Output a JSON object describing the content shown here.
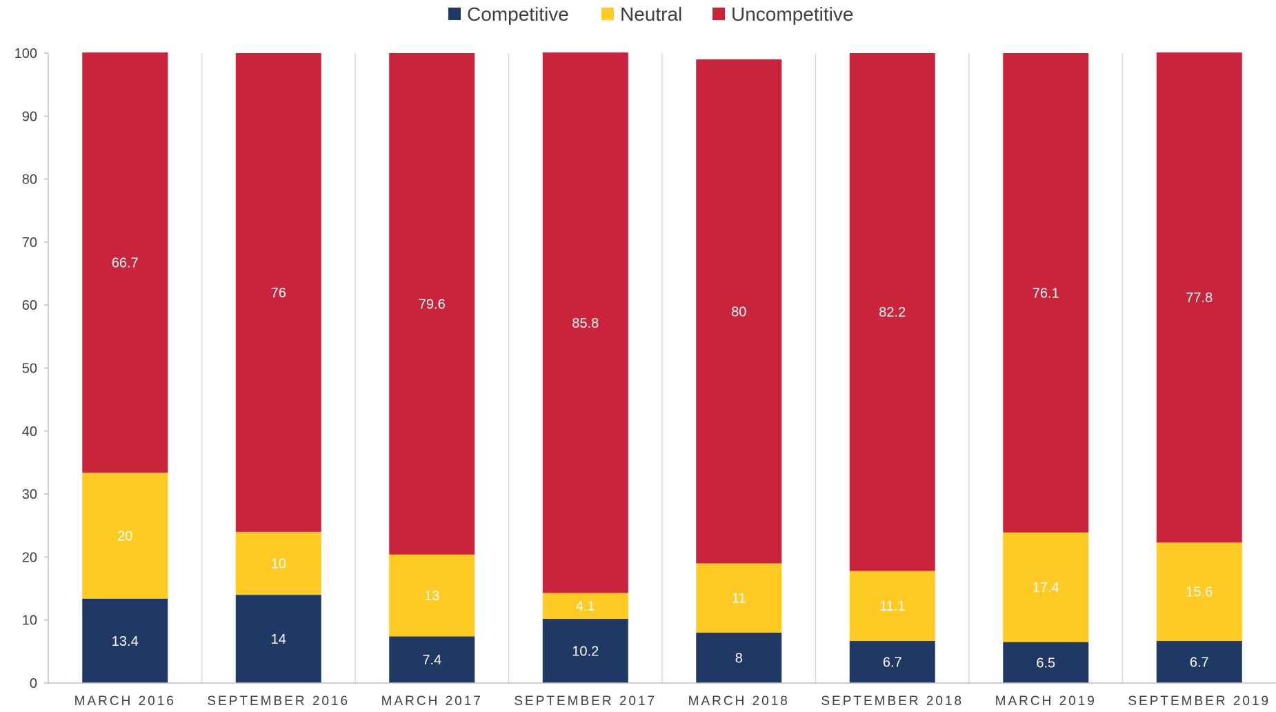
{
  "chart_data": {
    "type": "bar",
    "stacked": true,
    "categories": [
      "MARCH 2016",
      "SEPTEMBER 2016",
      "MARCH 2017",
      "SEPTEMBER 2017",
      "MARCH 2018",
      "SEPTEMBER 2018",
      "MARCH 2019",
      "SEPTEMBER 2019"
    ],
    "series": [
      {
        "name": "Competitive",
        "color": "#203864",
        "values": [
          13.4,
          14,
          7.4,
          10.2,
          8,
          6.7,
          6.5,
          6.7
        ],
        "labels": [
          "13.4",
          "14",
          "7.4",
          "10.2",
          "8",
          "6.7",
          "6.5",
          "6.7"
        ]
      },
      {
        "name": "Neutral",
        "color": "#FFCA24",
        "values": [
          20,
          10,
          13,
          4.1,
          11,
          11.1,
          17.4,
          15.6
        ],
        "labels": [
          "20",
          "10",
          "13",
          "4.1",
          "11",
          "11.1",
          "17.4",
          "15.6"
        ]
      },
      {
        "name": "Uncompetitive",
        "color": "#C9243B",
        "values": [
          66.7,
          76,
          79.6,
          85.8,
          80,
          82.2,
          76.1,
          77.8
        ],
        "labels": [
          "66.7",
          "76",
          "79.6",
          "85.8",
          "80",
          "82.2",
          "76.1",
          "77.8"
        ]
      }
    ],
    "ylim": [
      0,
      100
    ],
    "yticks": [
      "0",
      "10",
      "20",
      "30",
      "40",
      "50",
      "60",
      "70",
      "80",
      "90",
      "100"
    ],
    "legend_position": "top-center",
    "grid": "vertical separators between categories",
    "title": "",
    "xlabel": "",
    "ylabel": ""
  }
}
